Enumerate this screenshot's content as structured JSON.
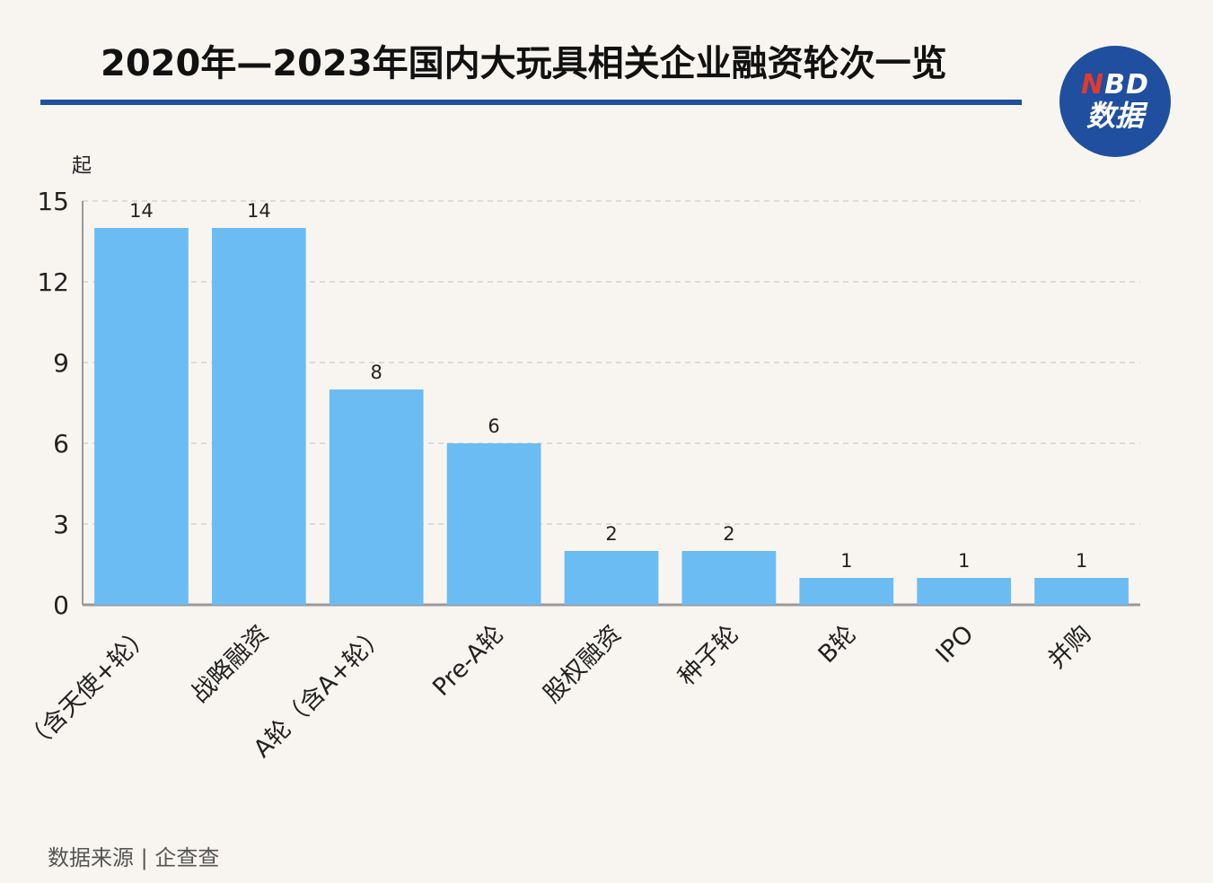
{
  "header": {
    "title": "2020年—2023年国内大玩具相关企业融资轮次一览",
    "logo_top": "BD",
    "logo_top_accent": "N",
    "logo_bottom": "数据"
  },
  "footer": {
    "source": "数据来源 | 企查查"
  },
  "colors": {
    "bar": "#6bbcf3",
    "brand_blue": "#1f4f9e",
    "logo_red": "#e23a2e",
    "background": "#f8f5f1",
    "grid": "#cccccc",
    "axis": "#999999"
  },
  "chart_data": {
    "type": "bar",
    "title": "2020年—2023年国内大玩具相关企业融资轮次一览",
    "ylabel": "起",
    "xlabel": "",
    "ylim": [
      0,
      15
    ],
    "yticks": [
      0,
      3,
      6,
      9,
      12,
      15
    ],
    "grid": true,
    "categories": [
      "（含天使+轮）",
      "战略融资",
      "A轮（含A+轮）",
      "Pre-A轮",
      "股权融资",
      "种子轮",
      "B轮",
      "IPO",
      "并购"
    ],
    "values": [
      14,
      14,
      8,
      6,
      2,
      2,
      1,
      1,
      1
    ]
  }
}
